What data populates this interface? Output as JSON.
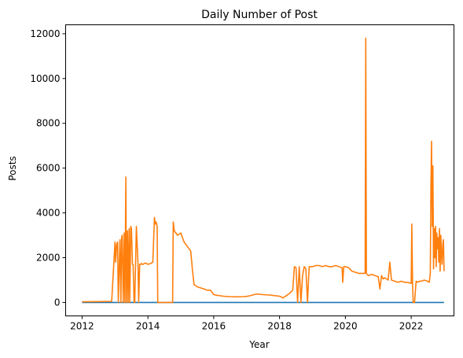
{
  "chart_data": {
    "type": "line",
    "title": "Daily Number of Post",
    "xlabel": "Year",
    "ylabel": "Posts",
    "xlim": [
      2011.5,
      2023.3
    ],
    "ylim": [
      -600,
      12400
    ],
    "x_ticks": [
      2012,
      2014,
      2016,
      2018,
      2020,
      2022
    ],
    "x_tick_labels": [
      "2012",
      "2014",
      "2016",
      "2018",
      "2020",
      "2022"
    ],
    "y_ticks": [
      0,
      2000,
      4000,
      6000,
      8000,
      10000,
      12000
    ],
    "y_tick_labels": [
      "0",
      "2000",
      "4000",
      "6000",
      "8000",
      "10000",
      "12000"
    ],
    "grid": false,
    "series": [
      {
        "color": "#1f77b4",
        "x": [
          2012.0,
          2023.0
        ],
        "y": [
          0,
          0
        ]
      },
      {
        "color": "#ff7f0e",
        "x": [
          2012.0,
          2012.5,
          2012.9,
          2013.0,
          2013.02,
          2013.05,
          2013.08,
          2013.1,
          2013.15,
          2013.18,
          2013.2,
          2013.22,
          2013.25,
          2013.28,
          2013.3,
          2013.33,
          2013.35,
          2013.38,
          2013.4,
          2013.43,
          2013.45,
          2013.48,
          2013.5,
          2013.53,
          2013.55,
          2013.58,
          2013.6,
          2013.65,
          2013.7,
          2013.72,
          2013.75,
          2013.78,
          2013.8,
          2013.82,
          2013.85,
          2013.9,
          2013.95,
          2014.0,
          2014.1,
          2014.15,
          2014.2,
          2014.22,
          2014.25,
          2014.28,
          2014.3,
          2014.35,
          2014.4,
          2014.6,
          2014.75,
          2014.77,
          2014.8,
          2014.9,
          2015.0,
          2015.1,
          2015.2,
          2015.3,
          2015.35,
          2015.4,
          2015.5,
          2015.6,
          2015.7,
          2015.8,
          2015.9,
          2016.0,
          2016.1,
          2016.3,
          2016.5,
          2016.7,
          2016.9,
          2017.0,
          2017.1,
          2017.3,
          2017.5,
          2017.7,
          2017.9,
          2018.0,
          2018.05,
          2018.1,
          2018.2,
          2018.3,
          2018.4,
          2018.45,
          2018.5,
          2018.55,
          2018.6,
          2018.65,
          2018.7,
          2018.75,
          2018.8,
          2018.85,
          2018.9,
          2019.0,
          2019.1,
          2019.2,
          2019.3,
          2019.4,
          2019.5,
          2019.6,
          2019.7,
          2019.8,
          2019.9,
          2019.92,
          2019.95,
          2020.0,
          2020.1,
          2020.2,
          2020.3,
          2020.4,
          2020.5,
          2020.6,
          2020.62,
          2020.64,
          2020.66,
          2020.7,
          2020.8,
          2020.9,
          2021.0,
          2021.05,
          2021.1,
          2021.15,
          2021.2,
          2021.25,
          2021.3,
          2021.35,
          2021.4,
          2021.5,
          2021.6,
          2021.7,
          2021.8,
          2021.9,
          2022.0,
          2022.02,
          2022.04,
          2022.06,
          2022.1,
          2022.15,
          2022.2,
          2022.25,
          2022.3,
          2022.4,
          2022.5,
          2022.55,
          2022.58,
          2022.6,
          2022.62,
          2022.64,
          2022.66,
          2022.68,
          2022.7,
          2022.72,
          2022.74,
          2022.76,
          2022.78,
          2022.8,
          2022.82,
          2022.84,
          2022.86,
          2022.88,
          2022.9,
          2022.92,
          2022.94,
          2022.96,
          2022.98,
          2023.0
        ],
        "y": [
          30,
          40,
          50,
          2700,
          1800,
          2600,
          2700,
          0,
          2800,
          0,
          2900,
          3000,
          0,
          3100,
          0,
          5600,
          0,
          3200,
          0,
          3300,
          0,
          3400,
          3300,
          1700,
          1700,
          0,
          0,
          3400,
          1700,
          0,
          1700,
          1700,
          1750,
          1700,
          1700,
          1750,
          1750,
          1700,
          1750,
          1800,
          3800,
          3500,
          3600,
          3400,
          0,
          0,
          0,
          0,
          0,
          3600,
          3200,
          3000,
          3100,
          2700,
          2500,
          2300,
          1500,
          800,
          700,
          650,
          600,
          550,
          550,
          350,
          320,
          280,
          260,
          250,
          260,
          270,
          300,
          380,
          350,
          330,
          300,
          280,
          250,
          200,
          300,
          400,
          550,
          1600,
          1550,
          0,
          1600,
          0,
          1200,
          1600,
          1500,
          0,
          1600,
          1600,
          1650,
          1650,
          1600,
          1650,
          1600,
          1600,
          1650,
          1600,
          1550,
          900,
          1600,
          1600,
          1550,
          1400,
          1350,
          1300,
          1300,
          1300,
          11800,
          1300,
          1250,
          1200,
          1250,
          1200,
          1150,
          600,
          1200,
          1050,
          1100,
          1050,
          1000,
          1800,
          1000,
          950,
          900,
          950,
          900,
          900,
          850,
          3500,
          900,
          0,
          0,
          950,
          900,
          950,
          950,
          1000,
          950,
          900,
          1300,
          5200,
          7200,
          3400,
          6100,
          1500,
          3300,
          2000,
          3400,
          1600,
          3100,
          2400,
          2900,
          1800,
          3300,
          1400,
          3000,
          2100,
          1700,
          2600,
          2800,
          1400
        ]
      }
    ]
  }
}
